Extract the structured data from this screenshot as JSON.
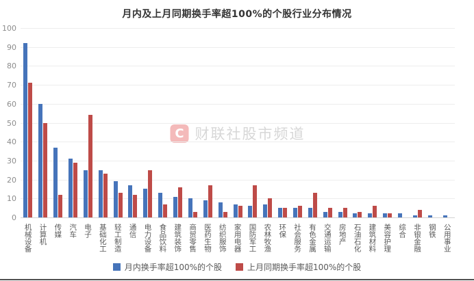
{
  "page": {
    "title": "月内及上月同期换手率超100%的个股行业分布情况"
  },
  "watermark": {
    "logo_letter": "C",
    "text": "财联社股市频道"
  },
  "chart_data": {
    "type": "bar",
    "title": "月内及上月同期换手率超100%的个股行业分布情况",
    "xlabel": "",
    "ylabel": "",
    "ylim": [
      0,
      100
    ],
    "ytick_step": 10,
    "grid": true,
    "legend_position": "bottom",
    "categories": [
      "机械设备",
      "计算机",
      "传媒",
      "汽车",
      "电子",
      "基础化工",
      "轻工制造",
      "通信",
      "电力设备",
      "食品饮料",
      "建筑装饰",
      "商贸零售",
      "医药生物",
      "纺织服饰",
      "家用电器",
      "国防军工",
      "农林牧渔",
      "环保",
      "社会服务",
      "有色金属",
      "交通运输",
      "房地产",
      "石油石化",
      "建筑材料",
      "美容护理",
      "综合",
      "非银金融",
      "钢铁",
      "公用事业"
    ],
    "series": [
      {
        "name": "月内换手率超100%的个股",
        "color": "#4674BA",
        "values": [
          92,
          60,
          37,
          31,
          25,
          25,
          19,
          17,
          15,
          13,
          11,
          10,
          9,
          8,
          7,
          6,
          7,
          5,
          5,
          5,
          3,
          3,
          2,
          2,
          2,
          2,
          1,
          1,
          1
        ]
      },
      {
        "name": "上月同期换手率超100%的个股",
        "color": "#BE4B48",
        "values": [
          71,
          50,
          12,
          29,
          54,
          23,
          13,
          12,
          25,
          7,
          16,
          3,
          17,
          3,
          6,
          17,
          10,
          5,
          6,
          13,
          5,
          5,
          3,
          6,
          2,
          0,
          4,
          0,
          0
        ]
      }
    ]
  }
}
